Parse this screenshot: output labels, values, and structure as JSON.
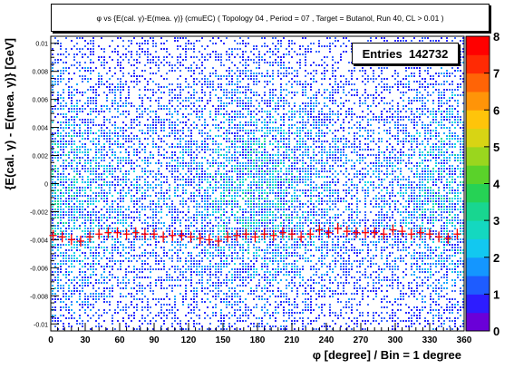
{
  "chart_data": {
    "type": "heatmap",
    "title": "φ vs {E(cal. γ)-E(mea. γ)} (cmuEC) ( Topology 04 , Period = 07 , Target = Butanol, Run 40, CL > 0.01 )",
    "xlabel": "φ [degree] / Bin = 1 degree",
    "ylabel": "{E(cal. γ) - E(mea. γ)} [GeV]",
    "xlim": [
      0,
      360
    ],
    "ylim": [
      -0.0105,
      0.0105
    ],
    "x_ticks": [
      0,
      30,
      60,
      90,
      120,
      150,
      180,
      210,
      240,
      270,
      300,
      330,
      360
    ],
    "y_ticks": [
      -0.01,
      -0.008,
      -0.006,
      -0.004,
      -0.002,
      0,
      0.002,
      0.004,
      0.006,
      0.008,
      0.01
    ],
    "x_tick_labels": [
      "0",
      "30",
      "60",
      "90",
      "120",
      "150",
      "180",
      "210",
      "240",
      "270",
      "300",
      "330",
      "360"
    ],
    "y_tick_labels": [
      "-0.01",
      "-0.008",
      "-0.006",
      "-0.004",
      "-0.002",
      "0",
      "0.002",
      "0.004",
      "0.006",
      "0.008",
      "0.01"
    ],
    "colorbar": {
      "range": [
        0,
        8
      ],
      "ticks": [
        0,
        1,
        2,
        3,
        4,
        5,
        6,
        7,
        8
      ],
      "tick_labels": [
        "0",
        "1",
        "2",
        "3",
        "4",
        "5",
        "6",
        "7",
        "8"
      ]
    },
    "stats": {
      "label": "Entries",
      "value": "142732"
    },
    "grid": false,
    "profile_series": {
      "marker": "cross",
      "color": "#ff0000",
      "x": [
        2,
        10,
        18,
        26,
        34,
        42,
        50,
        58,
        66,
        74,
        82,
        90,
        98,
        106,
        114,
        122,
        130,
        138,
        146,
        154,
        162,
        170,
        178,
        186,
        194,
        202,
        210,
        218,
        226,
        234,
        242,
        250,
        258,
        266,
        274,
        282,
        290,
        298,
        306,
        314,
        322,
        330,
        338,
        346,
        354
      ],
      "y": [
        -0.0037,
        -0.0038,
        -0.004,
        -0.0041,
        -0.0038,
        -0.0036,
        -0.0035,
        -0.0035,
        -0.0036,
        -0.0035,
        -0.0036,
        -0.0036,
        -0.0038,
        -0.0037,
        -0.0037,
        -0.0038,
        -0.0039,
        -0.004,
        -0.0041,
        -0.0038,
        -0.0037,
        -0.0036,
        -0.0038,
        -0.0036,
        -0.0037,
        -0.0035,
        -0.0036,
        -0.0038,
        -0.0036,
        -0.0033,
        -0.0035,
        -0.0032,
        -0.0034,
        -0.0035,
        -0.0035,
        -0.0035,
        -0.0036,
        -0.0033,
        -0.0034,
        -0.0036,
        -0.0035,
        -0.0036,
        -0.0038,
        -0.0039,
        -0.0036
      ]
    }
  }
}
